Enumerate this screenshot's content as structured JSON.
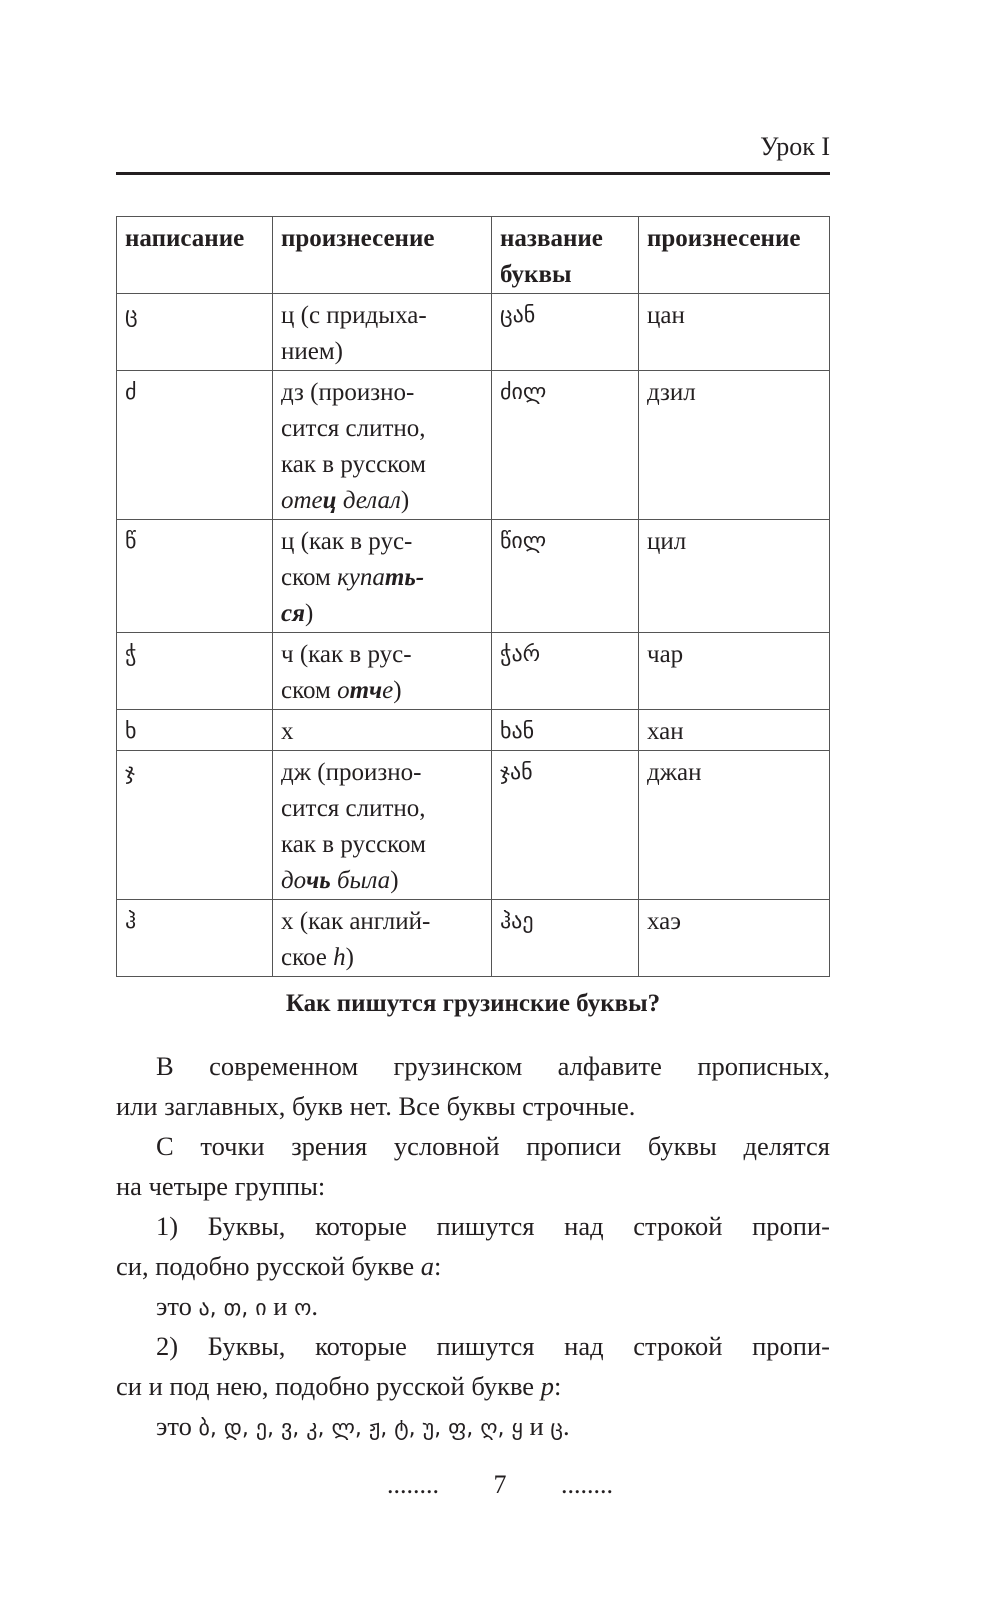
{
  "running_head": "Урок I",
  "table": {
    "headers": [
      "написание",
      "произнесение",
      "название буквы",
      "произнесение"
    ],
    "rows": [
      {
        "letter": "ც",
        "pron": [
          [
            {
              "t": "ц (с придыха-"
            }
          ],
          [
            {
              "t": "нием)"
            }
          ]
        ],
        "name": "ცან",
        "name_pron": "цан"
      },
      {
        "letter": "ძ",
        "pron": [
          [
            {
              "t": "дз (произно-"
            }
          ],
          [
            {
              "t": "сится слитно,"
            }
          ],
          [
            {
              "t": "как в русском"
            }
          ],
          [
            {
              "t": "оте",
              "s": "it"
            },
            {
              "t": "ц",
              "s": "ib"
            },
            {
              "t": " делал",
              "s": "it"
            },
            {
              "t": ")"
            }
          ]
        ],
        "name": "ძილ",
        "name_pron": "дзил"
      },
      {
        "letter": "წ",
        "pron": [
          [
            {
              "t": "ц (как в рус-"
            }
          ],
          [
            {
              "t": "ском "
            },
            {
              "t": "купа",
              "s": "it"
            },
            {
              "t": "ть-",
              "s": "ib"
            }
          ],
          [
            {
              "t": "ся",
              "s": "ib"
            },
            {
              "t": ")"
            }
          ]
        ],
        "name": "წილ",
        "name_pron": "цил"
      },
      {
        "letter": "ჭ",
        "pron": [
          [
            {
              "t": "ч (как в рус-"
            }
          ],
          [
            {
              "t": "ском "
            },
            {
              "t": "о",
              "s": "it"
            },
            {
              "t": "тч",
              "s": "ib"
            },
            {
              "t": "е",
              "s": "it"
            },
            {
              "t": ")"
            }
          ]
        ],
        "name": "ჭარ",
        "name_pron": "чар"
      },
      {
        "letter": "ხ",
        "pron": [
          [
            {
              "t": "х"
            }
          ]
        ],
        "name": "ხან",
        "name_pron": "хан"
      },
      {
        "letter": "ჯ",
        "pron": [
          [
            {
              "t": "дж (произно-"
            }
          ],
          [
            {
              "t": "сится слитно,"
            }
          ],
          [
            {
              "t": "как в русском"
            }
          ],
          [
            {
              "t": "до",
              "s": "it"
            },
            {
              "t": "чь",
              "s": "ib"
            },
            {
              "t": " была",
              "s": "it"
            },
            {
              "t": ")"
            }
          ]
        ],
        "name": "ჯან",
        "name_pron": "джан"
      },
      {
        "letter": "ჰ",
        "pron": [
          [
            {
              "t": "х (как англий-"
            }
          ],
          [
            {
              "t": "ское "
            },
            {
              "t": "h",
              "s": "it"
            },
            {
              "t": ")"
            }
          ]
        ],
        "name": "ჰაე",
        "name_pron": "хаэ"
      }
    ]
  },
  "section_heading": "Как пишутся грузинские буквы?",
  "body_lines": [
    {
      "cls": "just ind",
      "seg": [
        {
          "t": "В современном грузинском алфавите прописных,"
        }
      ]
    },
    {
      "cls": "",
      "seg": [
        {
          "t": "или заглавных, букв нет. Все буквы строчные."
        }
      ]
    },
    {
      "cls": "just ind",
      "seg": [
        {
          "t": "С точки зрения условной прописи буквы делятся"
        }
      ]
    },
    {
      "cls": "",
      "seg": [
        {
          "t": "на четыре группы:"
        }
      ]
    },
    {
      "cls": "just ind",
      "seg": [
        {
          "t": "1)    Буквы, которые пишутся над строкой пропи-"
        }
      ]
    },
    {
      "cls": "",
      "seg": [
        {
          "t": "си, подобно русской букве "
        },
        {
          "t": "а",
          "s": "it"
        },
        {
          "t": ":"
        }
      ]
    },
    {
      "cls": "ind",
      "seg": [
        {
          "t": "это "
        },
        {
          "t": "ა, თ, ი",
          "s": "geo"
        },
        {
          "t": " и "
        },
        {
          "t": "ო",
          "s": "geo"
        },
        {
          "t": "."
        }
      ]
    },
    {
      "cls": "just ind",
      "seg": [
        {
          "t": "2)    Буквы, которые пишутся над строкой пропи-"
        }
      ]
    },
    {
      "cls": "",
      "seg": [
        {
          "t": "си и под нею, подобно русской букве "
        },
        {
          "t": "р",
          "s": "it"
        },
        {
          "t": ":"
        }
      ]
    },
    {
      "cls": "ind",
      "seg": [
        {
          "t": "это "
        },
        {
          "t": "ბ, დ, ე, ვ, კ, ლ, ჟ, ტ, უ, ფ, ღ, ყ",
          "s": "geo"
        },
        {
          "t": " и "
        },
        {
          "t": "ც",
          "s": "geo"
        },
        {
          "t": "."
        }
      ]
    }
  ],
  "footer": {
    "dots_left": "........",
    "page_number": "7",
    "dots_right": "........"
  }
}
